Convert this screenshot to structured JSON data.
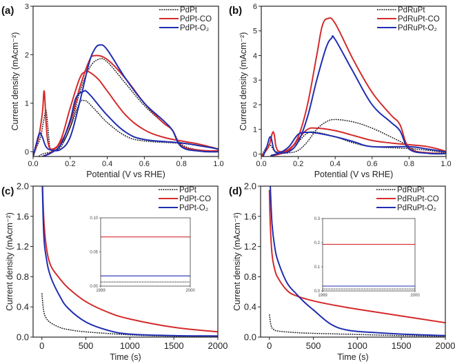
{
  "colors": {
    "pristine": "#111111",
    "co": "#d42a2a",
    "o2": "#1f2db0"
  },
  "chart_data": [
    {
      "panel": "(a)",
      "type": "line",
      "xlabel": "Potential (V vs RHE)",
      "ylabel": "Current density (mAcm⁻²)",
      "xlim": [
        0,
        1.0
      ],
      "ylim": [
        -0.1,
        3
      ],
      "xticks": [
        "0.0",
        "0.2",
        "0.4",
        "0.6",
        "0.8",
        "1.0"
      ],
      "xtick_values": [
        0,
        0.2,
        0.4,
        0.6,
        0.8,
        1.0
      ],
      "yticks": [
        "0",
        "1",
        "2",
        "3"
      ],
      "ytick_values": [
        0,
        1,
        2,
        3
      ],
      "legend": "top-right",
      "series": [
        {
          "name": "PdPt",
          "style": "dotted",
          "color_key": "pristine",
          "x": [
            0,
            0.02,
            0.04,
            0.06,
            0.07,
            0.08,
            0.09,
            0.1,
            0.15,
            0.2,
            0.25,
            0.3,
            0.35,
            0.4,
            0.5,
            0.6,
            0.7,
            0.75,
            0.8,
            0.9,
            1.0,
            1.0,
            0.9,
            0.8,
            0.6,
            0.5,
            0.4,
            0.35,
            0.3,
            0.28,
            0.25,
            0.2,
            0.15,
            0.1,
            0.05,
            0.03
          ],
          "y": [
            -0.1,
            0.1,
            0.3,
            0.7,
            0.85,
            0.5,
            0.1,
            0.05,
            0.15,
            0.5,
            1.2,
            1.7,
            1.9,
            1.85,
            1.4,
            0.95,
            0.6,
            0.45,
            0.15,
            0.03,
            0.02,
            0.05,
            0.12,
            0.17,
            0.22,
            0.32,
            0.6,
            0.8,
            1.0,
            1.05,
            1.0,
            0.5,
            0.1,
            0.0,
            -0.05,
            -0.1
          ]
        },
        {
          "name": "PdPt-CO",
          "style": "solid",
          "color_key": "co",
          "x": [
            0,
            0.03,
            0.05,
            0.06,
            0.07,
            0.08,
            0.1,
            0.15,
            0.2,
            0.25,
            0.3,
            0.33,
            0.4,
            0.5,
            0.6,
            0.7,
            0.75,
            0.8,
            0.9,
            1.0,
            1.0,
            0.9,
            0.8,
            0.7,
            0.6,
            0.5,
            0.4,
            0.35,
            0.3,
            0.28,
            0.25,
            0.2,
            0.15,
            0.1,
            0.05
          ],
          "y": [
            -0.1,
            0.3,
            0.8,
            1.25,
            0.6,
            0.2,
            0.05,
            0.2,
            0.6,
            1.3,
            1.85,
            1.98,
            1.9,
            1.5,
            1.0,
            0.6,
            0.45,
            0.12,
            0.03,
            0.02,
            0.05,
            0.15,
            0.22,
            0.3,
            0.45,
            0.75,
            1.25,
            1.5,
            1.65,
            1.65,
            1.5,
            0.9,
            0.25,
            0.0,
            -0.1
          ]
        },
        {
          "name": "PdPt-O₂",
          "style": "solid",
          "color_key": "o2",
          "x": [
            0,
            0.02,
            0.035,
            0.05,
            0.07,
            0.1,
            0.15,
            0.2,
            0.25,
            0.3,
            0.33,
            0.36,
            0.4,
            0.5,
            0.6,
            0.7,
            0.75,
            0.8,
            0.9,
            1.0,
            1.0,
            0.9,
            0.8,
            0.6,
            0.5,
            0.4,
            0.3,
            0.27,
            0.23,
            0.2,
            0.15,
            0.1,
            0.05
          ],
          "y": [
            -0.1,
            0.2,
            0.38,
            0.3,
            0.1,
            0.03,
            0.05,
            0.3,
            1.0,
            1.8,
            2.1,
            2.2,
            2.1,
            1.5,
            1.0,
            0.65,
            0.45,
            0.1,
            0.01,
            0.0,
            0.05,
            0.12,
            0.18,
            0.25,
            0.4,
            0.75,
            1.2,
            1.24,
            1.1,
            0.65,
            0.15,
            -0.02,
            -0.1
          ]
        }
      ]
    },
    {
      "panel": "(b)",
      "type": "line",
      "xlabel": "Potential (V vs RHE)",
      "ylabel": "Current density (mAcm⁻²)",
      "xlim": [
        0,
        1.0
      ],
      "ylim": [
        -0.1,
        6
      ],
      "xticks": [
        "0.0",
        "0.2",
        "0.4",
        "0.6",
        "0.8",
        "1.0"
      ],
      "xtick_values": [
        0,
        0.2,
        0.4,
        0.6,
        0.8,
        1.0
      ],
      "yticks": [
        "0",
        "1",
        "2",
        "3",
        "4",
        "5",
        "6"
      ],
      "ytick_values": [
        0,
        1,
        2,
        3,
        4,
        5,
        6
      ],
      "legend": "top-right",
      "series": [
        {
          "name": "PdRuPt",
          "style": "dotted",
          "color_key": "pristine",
          "x": [
            0,
            0.03,
            0.05,
            0.07,
            0.1,
            0.15,
            0.2,
            0.25,
            0.3,
            0.35,
            0.4,
            0.5,
            0.6,
            0.7,
            0.78,
            0.85,
            1.0,
            1.0,
            0.9,
            0.8,
            0.6,
            0.5,
            0.4,
            0.3,
            0.25,
            0.2,
            0.15,
            0.1,
            0.05
          ],
          "y": [
            -0.1,
            0.3,
            0.35,
            0.15,
            0.05,
            0.05,
            0.15,
            0.5,
            1.0,
            1.3,
            1.4,
            1.3,
            1.05,
            0.7,
            0.4,
            0.1,
            0.03,
            0.05,
            0.15,
            0.22,
            0.3,
            0.45,
            0.7,
            0.88,
            0.85,
            0.5,
            0.2,
            0.05,
            -0.05
          ]
        },
        {
          "name": "PdRuPt-CO",
          "style": "solid",
          "color_key": "co",
          "x": [
            0,
            0.04,
            0.06,
            0.07,
            0.08,
            0.1,
            0.15,
            0.2,
            0.25,
            0.3,
            0.33,
            0.36,
            0.4,
            0.5,
            0.6,
            0.7,
            0.75,
            0.8,
            0.9,
            1.0,
            1.0,
            0.9,
            0.8,
            0.7,
            0.6,
            0.5,
            0.4,
            0.3,
            0.25,
            0.2,
            0.15,
            0.1,
            0.05
          ],
          "y": [
            -0.1,
            0.3,
            0.85,
            0.8,
            0.3,
            0.1,
            0.2,
            0.7,
            2.0,
            4.0,
            5.2,
            5.5,
            5.3,
            3.8,
            2.5,
            1.6,
            1.2,
            0.25,
            0.05,
            0.03,
            0.1,
            0.3,
            0.38,
            0.45,
            0.55,
            0.75,
            0.95,
            1.05,
            1.0,
            0.6,
            0.15,
            0.0,
            -0.08
          ]
        },
        {
          "name": "PdRuPt-O₂",
          "style": "solid",
          "color_key": "o2",
          "x": [
            0.01,
            0.03,
            0.05,
            0.07,
            0.1,
            0.15,
            0.2,
            0.25,
            0.3,
            0.35,
            0.38,
            0.4,
            0.5,
            0.6,
            0.7,
            0.75,
            0.8,
            0.9,
            1.0,
            1.0,
            0.9,
            0.8,
            0.6,
            0.5,
            0.4,
            0.3,
            0.25,
            0.2,
            0.15,
            0.1,
            0.05
          ],
          "y": [
            -0.1,
            0.3,
            0.7,
            0.15,
            0.05,
            0.1,
            0.5,
            1.5,
            3.0,
            4.3,
            4.7,
            4.65,
            3.3,
            2.0,
            1.3,
            0.95,
            0.2,
            0.03,
            0.02,
            0.08,
            0.2,
            0.3,
            0.3,
            0.5,
            0.7,
            0.85,
            0.88,
            0.8,
            0.3,
            0.05,
            -0.08
          ]
        }
      ]
    },
    {
      "panel": "(c)",
      "type": "line",
      "xlabel": "Time (s)",
      "ylabel": "Current density (mAcm⁻²)",
      "xlim": [
        -100,
        2000
      ],
      "ylim": [
        0,
        2.0
      ],
      "xticks": [
        "0",
        "500",
        "1000",
        "1500",
        "2000"
      ],
      "xtick_values": [
        0,
        500,
        1000,
        1500,
        2000
      ],
      "yticks": [
        "0.0",
        "0.4",
        "0.8",
        "1.2",
        "1.6",
        "2.0"
      ],
      "ytick_values": [
        0,
        0.4,
        0.8,
        1.2,
        1.6,
        2.0
      ],
      "legend": "top-right",
      "series": [
        {
          "name": "PdPt",
          "style": "dotted",
          "color_key": "pristine",
          "x": [
            0,
            20,
            50,
            100,
            200,
            300,
            500,
            1000,
            1500,
            2000
          ],
          "y": [
            0.58,
            0.35,
            0.25,
            0.19,
            0.13,
            0.1,
            0.07,
            0.03,
            0.012,
            0.005
          ]
        },
        {
          "name": "PdPt-CO",
          "style": "solid",
          "color_key": "co",
          "x": [
            0,
            20,
            50,
            100,
            200,
            300,
            500,
            750,
            1000,
            1500,
            2000
          ],
          "y": [
            2.3,
            1.6,
            1.2,
            0.95,
            0.78,
            0.65,
            0.47,
            0.33,
            0.24,
            0.13,
            0.07
          ]
        },
        {
          "name": "PdPt-O₂",
          "style": "solid",
          "color_key": "o2",
          "x": [
            0,
            20,
            50,
            100,
            200,
            300,
            500,
            750,
            1000,
            1500,
            2000
          ],
          "y": [
            2.3,
            1.4,
            1.05,
            0.8,
            0.55,
            0.38,
            0.2,
            0.09,
            0.04,
            0.02,
            0.015
          ]
        }
      ],
      "inset": {
        "xlim": [
          1999,
          2000
        ],
        "ylim": [
          0,
          0.1
        ],
        "xticks": [
          "1999",
          "2000"
        ],
        "xtick_values": [
          1999,
          2000
        ],
        "yticks": [
          "0.00",
          "0.05",
          "0.10"
        ],
        "ytick_values": [
          0,
          0.05,
          0.1
        ],
        "series": [
          {
            "name": "PdPt",
            "style": "dotted",
            "color_key": "pristine",
            "x": [
              1999,
              2000
            ],
            "y": [
              0.006,
              0.006
            ]
          },
          {
            "name": "PdPt-CO",
            "style": "solid",
            "color_key": "co",
            "x": [
              1999,
              2000
            ],
            "y": [
              0.072,
              0.072
            ]
          },
          {
            "name": "PdPt-O₂",
            "style": "solid",
            "color_key": "o2",
            "x": [
              1999,
              2000
            ],
            "y": [
              0.015,
              0.015
            ]
          }
        ]
      }
    },
    {
      "panel": "(d)",
      "type": "line",
      "xlabel": "Time (s)",
      "ylabel": "Current density (mAcm⁻²)",
      "xlim": [
        -100,
        2000
      ],
      "ylim": [
        0,
        2.0
      ],
      "xticks": [
        "0",
        "500",
        "1000",
        "1500",
        "2000"
      ],
      "xtick_values": [
        0,
        500,
        1000,
        1500,
        2000
      ],
      "yticks": [
        "0.0",
        "0.4",
        "0.8",
        "1.2",
        "1.6",
        "2.0"
      ],
      "ytick_values": [
        0,
        0.4,
        0.8,
        1.2,
        1.6,
        2.0
      ],
      "legend": "top-right",
      "series": [
        {
          "name": "PdRuPt",
          "style": "dotted",
          "color_key": "pristine",
          "x": [
            0,
            20,
            50,
            100,
            300,
            500,
            1000,
            1500,
            2000
          ],
          "y": [
            0.3,
            0.15,
            0.1,
            0.08,
            0.06,
            0.05,
            0.035,
            0.02,
            0.01
          ]
        },
        {
          "name": "PdRuPt-CO",
          "style": "solid",
          "color_key": "co",
          "x": [
            0,
            10,
            30,
            60,
            100,
            200,
            300,
            500,
            750,
            1000,
            1500,
            2000
          ],
          "y": [
            1.95,
            1.5,
            1.1,
            0.9,
            0.78,
            0.62,
            0.55,
            0.48,
            0.42,
            0.37,
            0.28,
            0.19
          ]
        },
        {
          "name": "PdRuPt-O₂",
          "style": "solid",
          "color_key": "o2",
          "x": [
            10,
            30,
            60,
            100,
            200,
            300,
            400,
            500,
            700,
            900,
            1200,
            1500,
            2000
          ],
          "y": [
            2.0,
            1.5,
            1.2,
            1.0,
            0.72,
            0.58,
            0.46,
            0.36,
            0.17,
            0.09,
            0.06,
            0.04,
            0.02
          ]
        }
      ],
      "inset": {
        "xlim": [
          1999,
          2000
        ],
        "ylim": [
          0,
          0.3
        ],
        "xticks": [
          "1999",
          "2000"
        ],
        "xtick_values": [
          1999,
          2000
        ],
        "yticks": [
          "0.0",
          "0.1",
          "0.2",
          "0.3"
        ],
        "ytick_values": [
          0,
          0.1,
          0.2,
          0.3
        ],
        "series": [
          {
            "name": "PdRuPt",
            "style": "dotted",
            "color_key": "pristine",
            "x": [
              1999,
              2000
            ],
            "y": [
              0.008,
              0.008
            ]
          },
          {
            "name": "PdRuPt-CO",
            "style": "solid",
            "color_key": "co",
            "x": [
              1999,
              2000
            ],
            "y": [
              0.193,
              0.193
            ]
          },
          {
            "name": "PdRuPt-O₂",
            "style": "solid",
            "color_key": "o2",
            "x": [
              1999,
              2000
            ],
            "y": [
              0.02,
              0.02
            ]
          }
        ]
      }
    }
  ]
}
